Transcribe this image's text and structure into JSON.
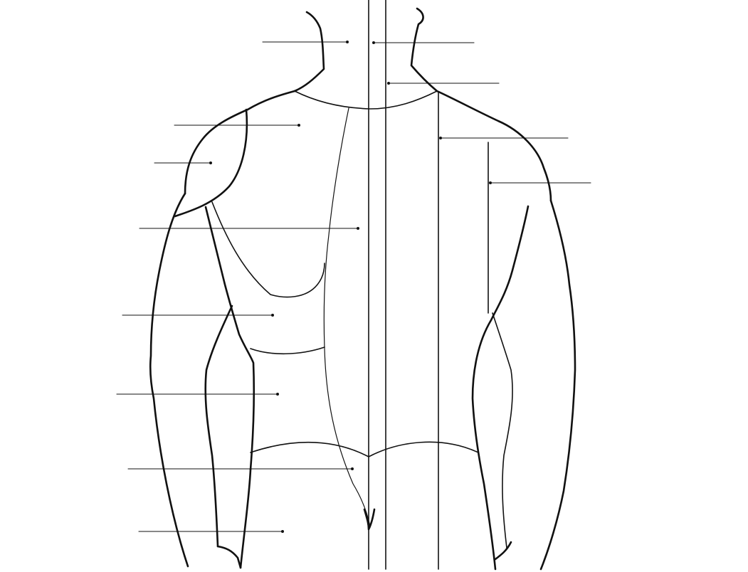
{
  "diagram": {
    "subject": "posterior-torso-muscles-unlabeled",
    "colors": {
      "background": "#ffffff",
      "ink": "#111111"
    },
    "labels": [
      {
        "id": "leader-1",
        "text": ""
      },
      {
        "id": "leader-2",
        "text": ""
      },
      {
        "id": "leader-3",
        "text": ""
      },
      {
        "id": "leader-4",
        "text": ""
      },
      {
        "id": "leader-5",
        "text": ""
      },
      {
        "id": "leader-6",
        "text": ""
      },
      {
        "id": "leader-7",
        "text": ""
      },
      {
        "id": "leader-8",
        "text": ""
      },
      {
        "id": "leader-9",
        "text": ""
      },
      {
        "id": "leader-10",
        "text": ""
      },
      {
        "id": "leader-11",
        "text": ""
      },
      {
        "id": "leader-12",
        "text": ""
      },
      {
        "id": "leader-13",
        "text": ""
      },
      {
        "id": "leader-14",
        "text": ""
      }
    ]
  }
}
